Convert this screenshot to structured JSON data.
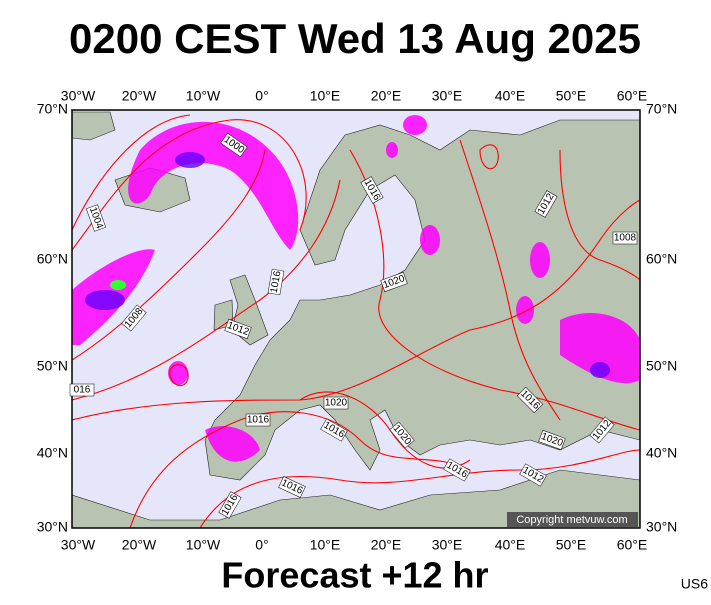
{
  "header": {
    "title": "0200 CEST Wed 13 Aug 2025"
  },
  "footer": {
    "forecast": "Forecast +12 hr",
    "code": "US6"
  },
  "map": {
    "lon_labels": [
      "30°W",
      "20°W",
      "10°W",
      "0°",
      "10°E",
      "20°E",
      "30°E",
      "40°E",
      "50°E",
      "60°E"
    ],
    "lat_labels": [
      "70°N",
      "60°N",
      "50°N",
      "40°N",
      "30°N"
    ],
    "isobar_labels": [
      "1000",
      "1004",
      "1008",
      "1016",
      "1012",
      "1008",
      "1016",
      "1020",
      "1012",
      "016",
      "1016",
      "1020",
      "1016",
      "1020",
      "1016",
      "1012",
      "1020",
      "1016",
      "1012",
      "1016",
      "1016"
    ],
    "copyright": "Copyright metvuw.com"
  }
}
